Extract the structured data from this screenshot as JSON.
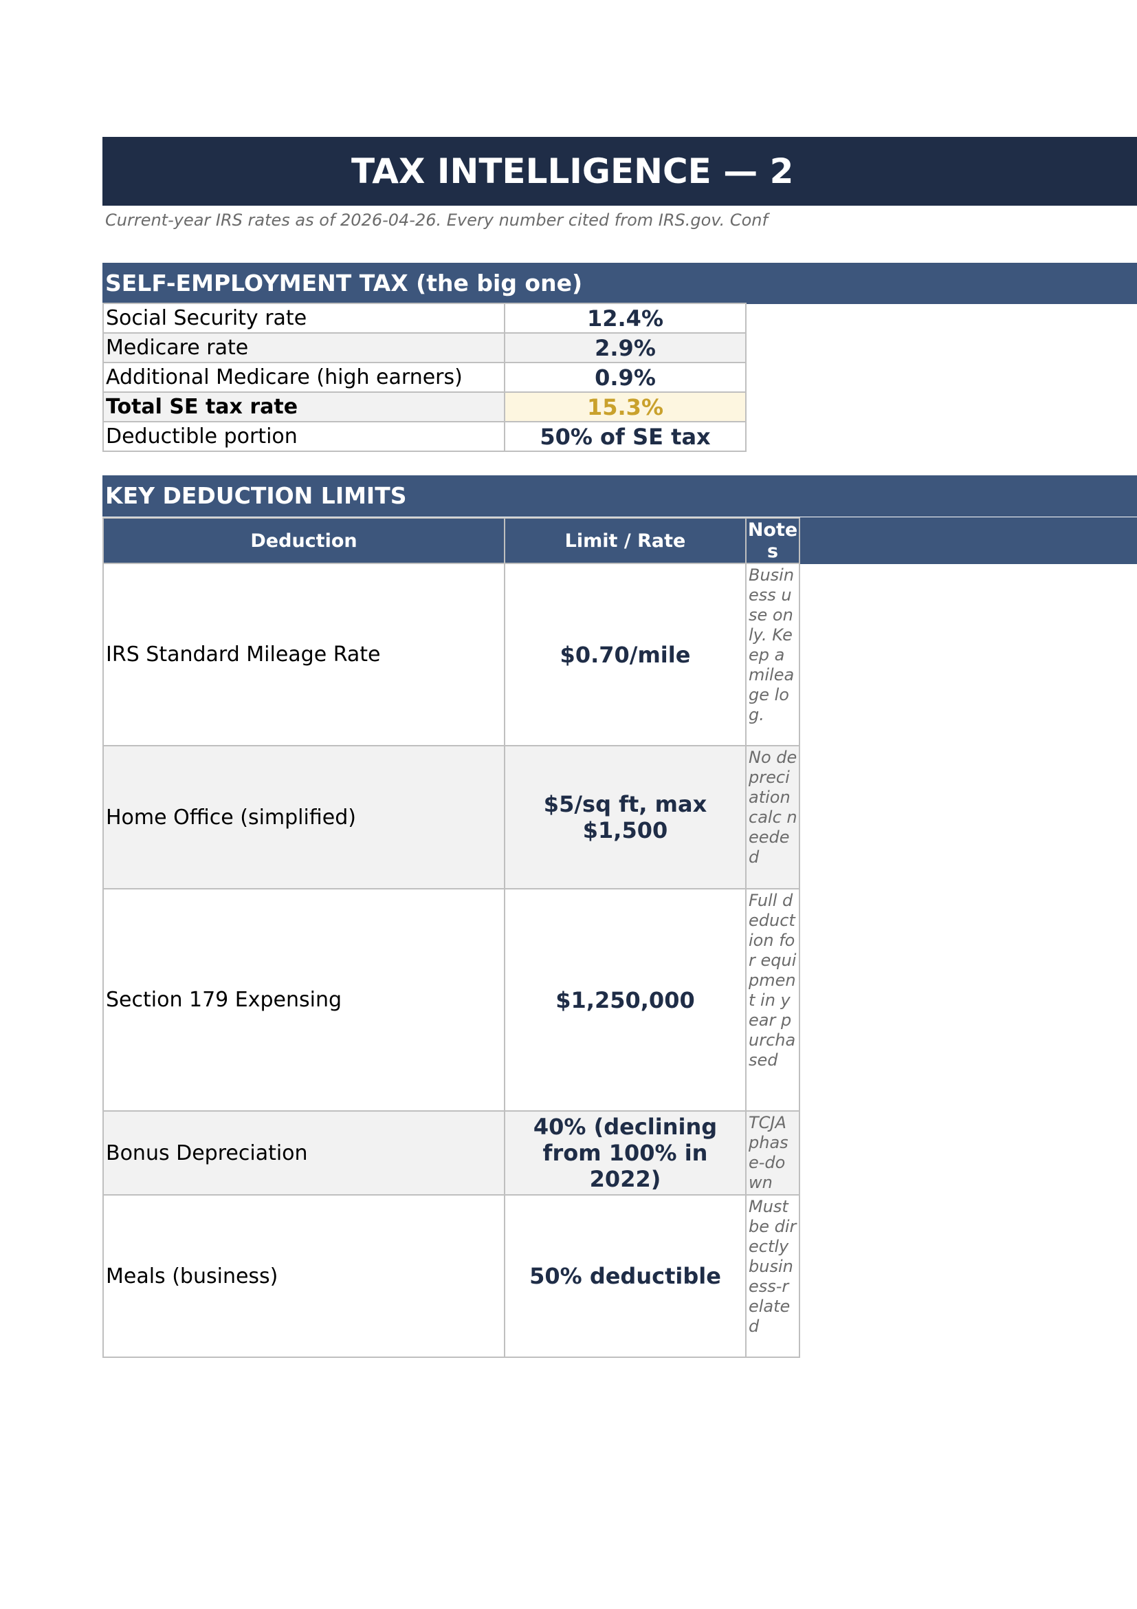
{
  "title": "TAX INTELLIGENCE — 2",
  "subtitle": "Current-year IRS rates as of 2026-04-26. Every number cited from IRS.gov. Conf",
  "se_section": {
    "title": "SELF-EMPLOYMENT TAX (the big one)",
    "rows": [
      {
        "label": "Social Security rate",
        "value": "12.4%"
      },
      {
        "label": "Medicare rate",
        "value": "2.9%"
      },
      {
        "label": "Additional Medicare (high earners)",
        "value": "0.9%"
      },
      {
        "label": "Total SE tax rate",
        "value": "15.3%"
      },
      {
        "label": "Deductible portion",
        "value": "50% of SE tax"
      }
    ]
  },
  "deductions_section": {
    "title": "KEY DEDUCTION LIMITS",
    "headers": {
      "deduction": "Deduction",
      "limit": "Limit / Rate",
      "notes": "Notes"
    },
    "rows": [
      {
        "deduction": "IRS Standard Mileage Rate",
        "limit": "$0.70/mile",
        "notes": "Business use only. Keep a mileage log."
      },
      {
        "deduction": "Home Office (simplified)",
        "limit": "$5/sq ft, max $1,500",
        "notes": "No depreciation calc needed"
      },
      {
        "deduction": "Section 179 Expensing",
        "limit": "$1,250,000",
        "notes": "Full deduction for equipment in year purchased"
      },
      {
        "deduction": "Bonus Depreciation",
        "limit": "40% (declining from 100% in 2022)",
        "notes": "TCJA phase-down"
      },
      {
        "deduction": "Meals (business)",
        "limit": "50% deductible",
        "notes": "Must be directly business-related"
      }
    ]
  },
  "colors": {
    "title_bar": "#1f2d47",
    "section_bar": "#3d567c",
    "highlight_fill": "#fdf6e0",
    "highlight_text": "#c9a12c"
  }
}
